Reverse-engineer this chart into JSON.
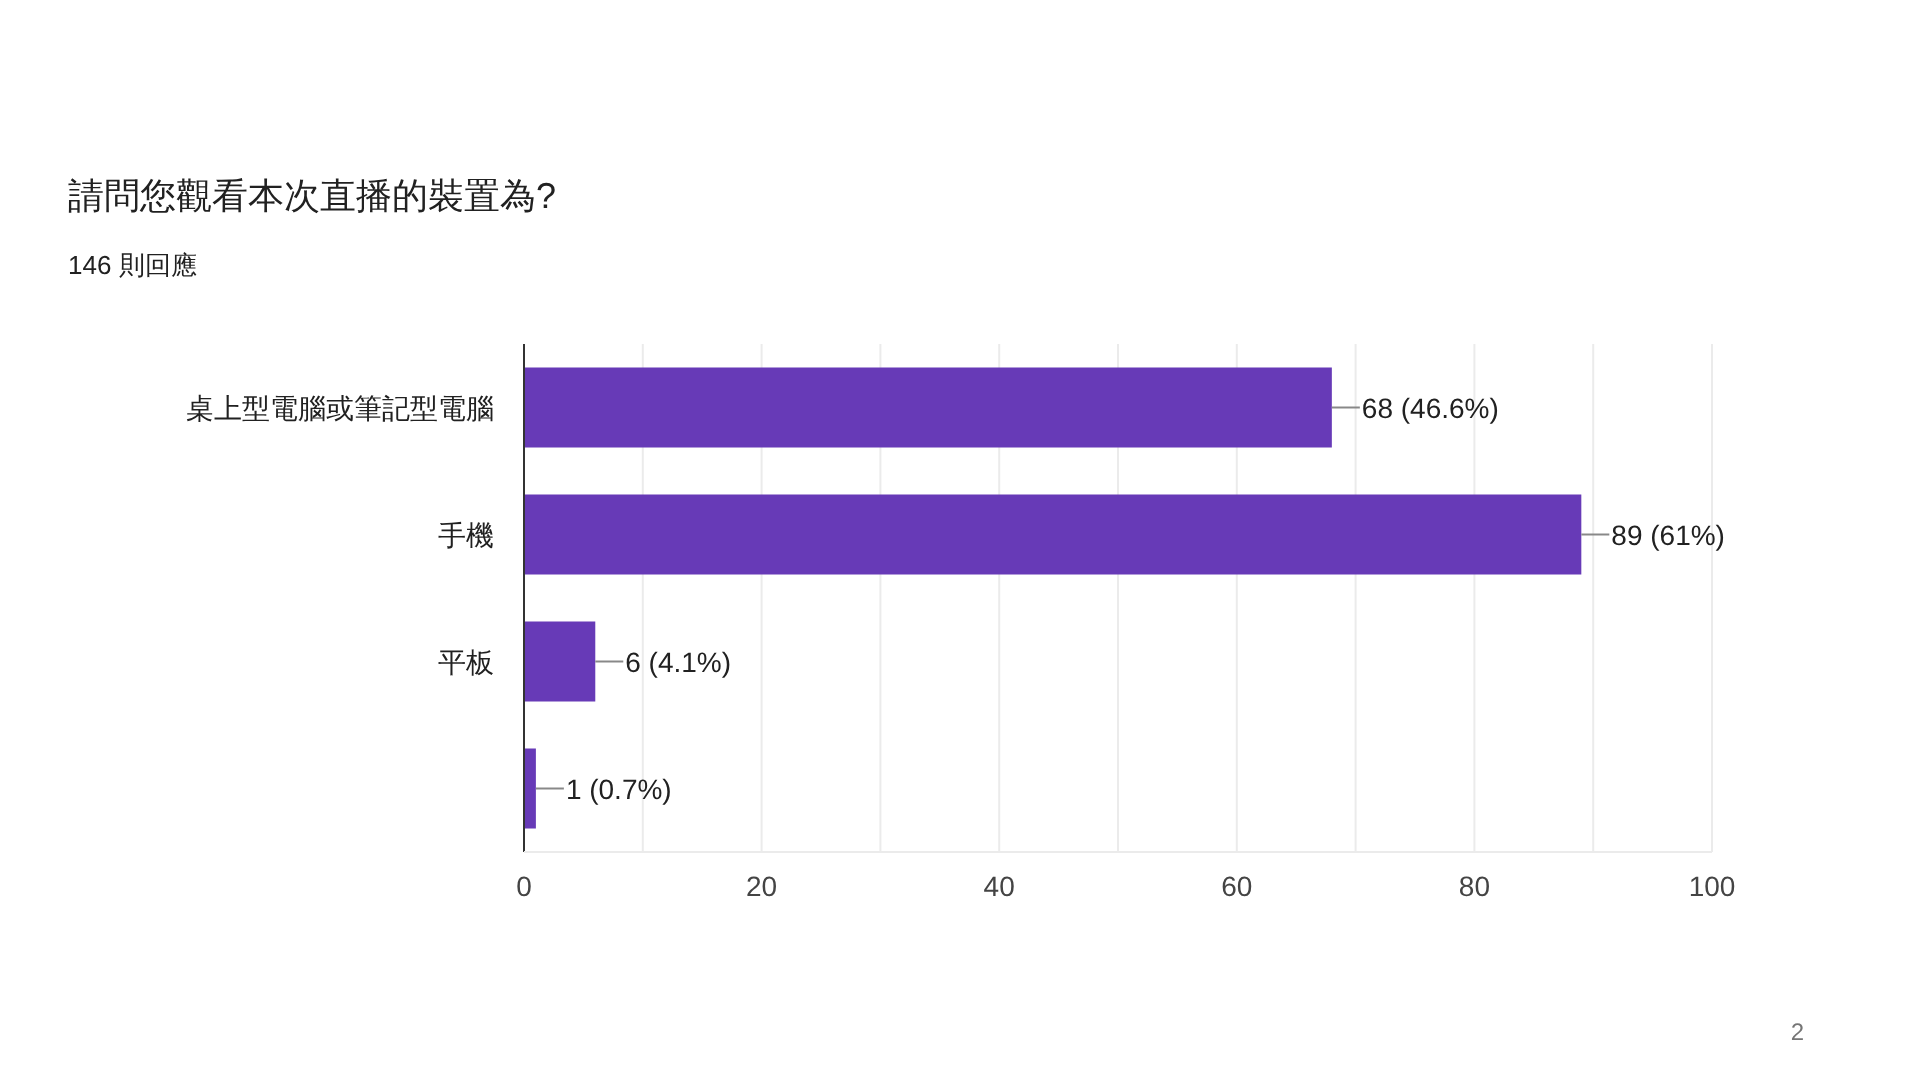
{
  "chart_data": {
    "type": "bar",
    "orientation": "horizontal",
    "title": "請問您觀看本次直播的裝置為?",
    "subtitle": "146 則回應",
    "categories": [
      "桌上型電腦或筆記型電腦",
      "手機",
      "平板",
      null
    ],
    "values": [
      68,
      89,
      6,
      1
    ],
    "color": "#673ab7",
    "value_labels": [
      "68 (46.6%)",
      "89 (61%)",
      "6 (4.1%)",
      "1 (0.7%)"
    ],
    "xlim": [
      0,
      100
    ],
    "xticks": [
      0,
      {
        "value": 10,
        "label": null
      },
      20,
      {
        "value": 30,
        "label": null
      },
      40,
      {
        "value": 50,
        "label": null
      },
      60,
      {
        "value": 70,
        "label": null
      },
      80,
      {
        "value": 90,
        "label": null
      },
      100
    ],
    "grid": "x",
    "annotations": [
      "2"
    ]
  }
}
